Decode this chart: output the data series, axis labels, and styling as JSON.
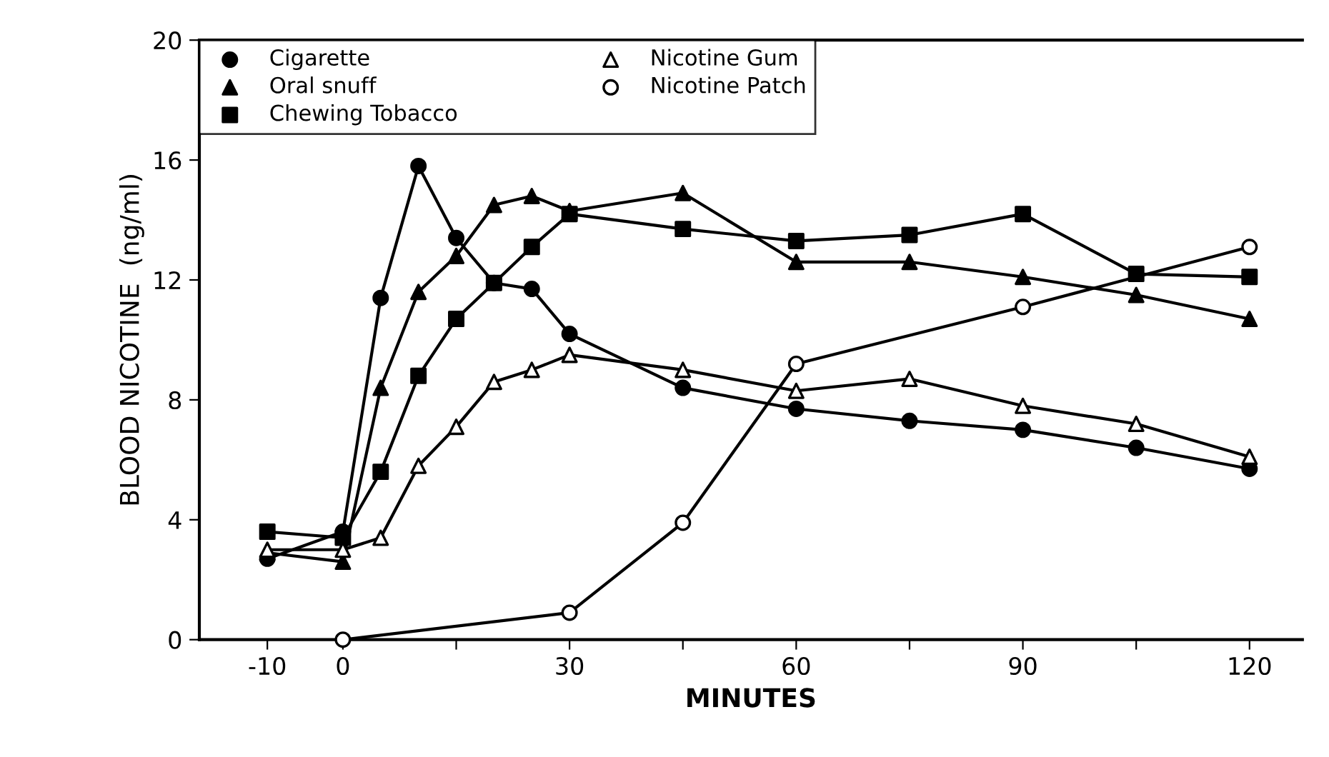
{
  "chart_data": {
    "type": "line",
    "xlabel": "MINUTES",
    "ylabel": "BLOOD NICOTINE  (ng/ml)",
    "xlim": [
      -19,
      127
    ],
    "ylim": [
      0,
      20
    ],
    "xticks": [
      -10,
      0,
      {
        "value": 15,
        "label": null
      },
      30,
      {
        "value": 45,
        "label": null
      },
      60,
      {
        "value": 75,
        "label": null
      },
      90,
      {
        "value": 105,
        "label": null
      },
      120
    ],
    "yticks": [
      0,
      4,
      8,
      12,
      16,
      20
    ],
    "grid": false,
    "legend": "top left",
    "line_style": "solid",
    "series": [
      {
        "name": "Cigarette",
        "color": "#000000",
        "marker": "circle",
        "x": [
          -10,
          0,
          5,
          10,
          15,
          20,
          25,
          30,
          45,
          60,
          75,
          90,
          105,
          120
        ],
        "values": [
          2.7,
          3.6,
          11.4,
          15.8,
          13.4,
          11.9,
          11.7,
          10.2,
          8.4,
          7.7,
          7.3,
          7.0,
          6.4,
          5.7
        ]
      },
      {
        "name": "Oral snuff",
        "color": "#000000",
        "marker": "triangle",
        "x": [
          -10,
          0,
          5,
          10,
          15,
          20,
          25,
          30,
          45,
          60,
          75,
          90,
          105,
          120
        ],
        "values": [
          2.9,
          2.6,
          8.4,
          11.6,
          12.8,
          14.5,
          14.8,
          14.3,
          14.9,
          12.6,
          12.6,
          12.1,
          11.5,
          10.7
        ]
      },
      {
        "name": "Chewing Tobacco",
        "color": "#000000",
        "marker": "square",
        "x": [
          -10,
          0,
          5,
          10,
          15,
          20,
          25,
          30,
          45,
          60,
          75,
          90,
          105,
          120
        ],
        "values": [
          3.6,
          3.4,
          5.6,
          8.8,
          10.7,
          11.9,
          13.1,
          14.2,
          13.7,
          13.3,
          13.5,
          14.2,
          12.2,
          12.1
        ]
      },
      {
        "name": "Nicotine Gum",
        "color": "#000000",
        "marker": "triangle",
        "colors": [
          "#ffffff",
          "#ffffff",
          "#ffffff",
          "#ffffff",
          "#ffffff",
          "#ffffff",
          "#ffffff",
          "#ffffff",
          "#ffffff",
          "#ffffff",
          "#ffffff",
          "#ffffff",
          "#ffffff",
          "#ffffff"
        ],
        "x": [
          -10,
          0,
          5,
          10,
          15,
          20,
          25,
          30,
          45,
          60,
          75,
          90,
          105,
          120
        ],
        "values": [
          3.0,
          3.0,
          3.4,
          5.8,
          7.1,
          8.6,
          9.0,
          9.5,
          9.0,
          8.3,
          8.7,
          7.8,
          7.2,
          6.1
        ]
      },
      {
        "name": "Nicotine Patch",
        "color": "#000000",
        "marker": "circle",
        "colors": [
          "#ffffff",
          "#ffffff",
          "#ffffff",
          "#ffffff",
          "#ffffff",
          "#ffffff"
        ],
        "x": [
          0,
          30,
          45,
          60,
          90,
          120
        ],
        "values": [
          0,
          0.9,
          3.9,
          9.2,
          11.1,
          13.1
        ]
      }
    ]
  }
}
